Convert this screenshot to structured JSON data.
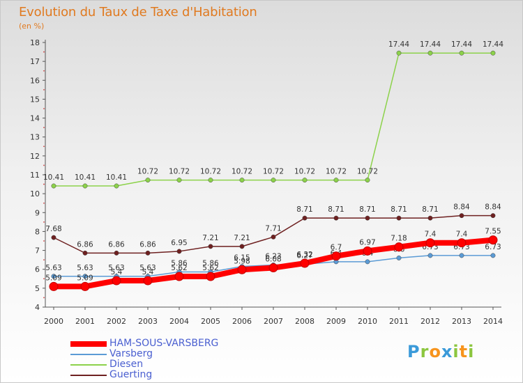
{
  "header": {
    "title": "Evolution du Taux de Taxe d'Habitation",
    "subtitle": "(en %)"
  },
  "brand": {
    "letters": [
      "P",
      "r",
      "o",
      "x",
      "i",
      "t",
      "i"
    ],
    "colors": [
      "#3a9ad9",
      "#8cc63f",
      "#f7941d",
      "#3a9ad9",
      "#8cc63f",
      "#f7941d",
      "#8cc63f"
    ]
  },
  "chart_data": {
    "type": "line",
    "title": "Evolution du Taux de Taxe d'Habitation",
    "subtitle": "(en %)",
    "xlabel": "",
    "ylabel": "",
    "x": [
      "2000",
      "2001",
      "2002",
      "2003",
      "2004",
      "2005",
      "2006",
      "2007",
      "2008",
      "2009",
      "2010",
      "2011",
      "2012",
      "2013",
      "2014"
    ],
    "ylim": [
      4,
      18
    ],
    "yticks": [
      "4",
      "5",
      "6",
      "7",
      "8",
      "9",
      "10",
      "11",
      "12",
      "13",
      "14",
      "15",
      "16",
      "17",
      "18"
    ],
    "grid": false,
    "legend_position": "bottom-left",
    "series": [
      {
        "name": "Diesen",
        "color": "#8cd24a",
        "values": [
          10.41,
          10.41,
          10.41,
          10.72,
          10.72,
          10.72,
          10.72,
          10.72,
          10.72,
          10.72,
          10.72,
          17.44,
          17.44,
          17.44,
          17.44
        ],
        "labels": [
          "10.41",
          "10.41",
          "10.41",
          "10.72",
          "10.72",
          "10.72",
          "10.72",
          "10.72",
          "10.72",
          "10.72",
          "10.72",
          "17.44",
          "17.44",
          "17.44",
          "17.44"
        ]
      },
      {
        "name": "Guerting",
        "color": "#6e2020",
        "values": [
          7.68,
          6.86,
          6.86,
          6.86,
          6.95,
          7.21,
          7.21,
          7.71,
          8.71,
          8.71,
          8.71,
          8.71,
          8.71,
          8.84,
          8.84
        ],
        "labels": [
          "7.68",
          "6.86",
          "6.86",
          "6.86",
          "6.95",
          "7.21",
          "7.21",
          "7.71",
          "8.71",
          "8.71",
          "8.71",
          "8.71",
          "8.71",
          "8.84",
          "8.84"
        ]
      },
      {
        "name": "Varsberg",
        "color": "#5b9bd5",
        "values": [
          5.63,
          5.63,
          5.63,
          5.63,
          5.86,
          5.86,
          6.15,
          6.23,
          6.27,
          6.4,
          6.4,
          6.6,
          6.73,
          6.73,
          6.73
        ],
        "labels": [
          "5.63",
          "5.63",
          "5.63",
          "5.63",
          "5.86",
          "5.86",
          "6.15",
          "6.23",
          "6.27",
          "6.4",
          "6.4",
          "6.6",
          "6.73",
          "6.73",
          "6.73"
        ]
      },
      {
        "name": "HAM-SOUS-VARSBERG",
        "color": "#ff0000",
        "values": [
          5.09,
          5.09,
          5.4,
          5.4,
          5.62,
          5.62,
          5.98,
          6.08,
          6.32,
          6.7,
          6.97,
          7.18,
          7.4,
          7.4,
          7.55
        ],
        "labels": [
          "5.09",
          "5.09",
          "5.4",
          "5.4",
          "5.62",
          "5.62",
          "5.98",
          "6.08",
          "6.32",
          "6.7",
          "6.97",
          "7.18",
          "7.4",
          "7.4",
          "7.55"
        ]
      }
    ]
  },
  "legend": {
    "items": [
      {
        "label": "HAM-SOUS-VARSBERG",
        "color": "#ff0000",
        "thickness": 8
      },
      {
        "label": "Varsberg",
        "color": "#5b9bd5",
        "thickness": 2
      },
      {
        "label": "Diesen",
        "color": "#8cd24a",
        "thickness": 2
      },
      {
        "label": "Guerting",
        "color": "#6e2020",
        "thickness": 2
      }
    ]
  }
}
